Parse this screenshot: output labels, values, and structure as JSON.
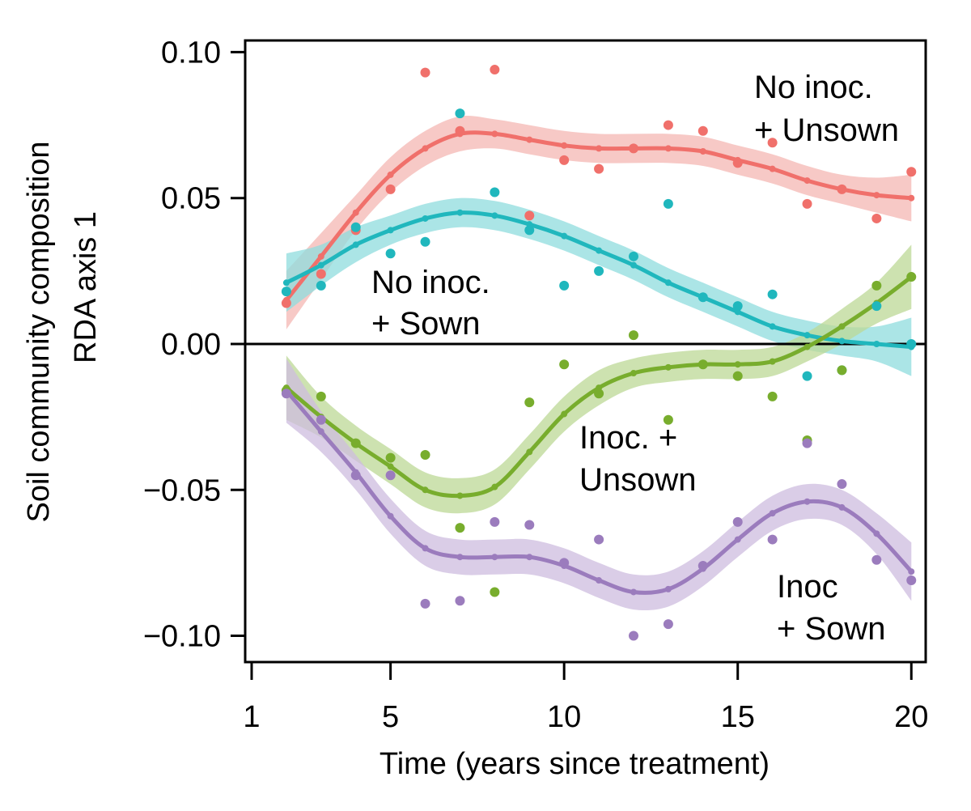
{
  "chart_data": {
    "type": "line",
    "title": "",
    "xlabel": "Time (years since treatment)",
    "ylabel_line1": "Soil community composition",
    "ylabel_line2": "RDA axis 1",
    "xlim": [
      1,
      20.6
    ],
    "ylim": [
      -0.109,
      0.104
    ],
    "x_ticks": [
      1,
      5,
      10,
      15,
      20
    ],
    "x_tick_labels": [
      "1",
      "5",
      "10",
      "15",
      "20"
    ],
    "y_ticks": [
      -0.1,
      -0.05,
      0,
      0.05,
      0.1
    ],
    "y_tick_labels": [
      "−0.10",
      "−0.05",
      "0.00",
      "0.05",
      "0.10"
    ],
    "reference_line_y": 0,
    "x": [
      2,
      3,
      4,
      5,
      6,
      7,
      8,
      9,
      10,
      11,
      12,
      13,
      14,
      15,
      16,
      17,
      18,
      19,
      20
    ],
    "series": [
      {
        "name": "No inoc. + Unsown",
        "label_line1": "No inoc.",
        "label_line2": "+ Unsown",
        "color": "#f0706b",
        "fill": "#f4b7b3",
        "fit": [
          0.015,
          0.03,
          0.045,
          0.058,
          0.067,
          0.072,
          0.072,
          0.07,
          0.068,
          0.067,
          0.067,
          0.067,
          0.066,
          0.063,
          0.06,
          0.056,
          0.053,
          0.051,
          0.05
        ],
        "band_halfwidth": [
          0.01,
          0.008,
          0.006,
          0.006,
          0.006,
          0.006,
          0.005,
          0.005,
          0.005,
          0.005,
          0.005,
          0.005,
          0.005,
          0.005,
          0.005,
          0.005,
          0.005,
          0.006,
          0.008
        ],
        "points": [
          0.014,
          0.024,
          0.039,
          0.053,
          0.093,
          0.073,
          0.094,
          0.044,
          0.063,
          0.06,
          0.067,
          0.075,
          0.073,
          0.062,
          0.069,
          0.048,
          0.053,
          0.043,
          0.059
        ]
      },
      {
        "name": "No inoc. + Sown",
        "label_line1": "No inoc.",
        "label_line2": "+ Sown",
        "color": "#20b7bd",
        "fill": "#8fdcde",
        "fit": [
          0.021,
          0.027,
          0.034,
          0.039,
          0.043,
          0.045,
          0.044,
          0.041,
          0.037,
          0.032,
          0.027,
          0.021,
          0.016,
          0.011,
          0.006,
          0.003,
          0.001,
          0.0,
          -0.001
        ],
        "band_halfwidth": [
          0.01,
          0.007,
          0.006,
          0.005,
          0.005,
          0.005,
          0.005,
          0.005,
          0.005,
          0.005,
          0.005,
          0.005,
          0.005,
          0.005,
          0.005,
          0.005,
          0.005,
          0.006,
          0.01
        ],
        "points": [
          0.018,
          0.02,
          0.04,
          0.031,
          0.035,
          0.079,
          0.052,
          0.039,
          0.02,
          0.025,
          0.03,
          0.048,
          0.016,
          0.013,
          0.017,
          -0.011,
          -0.009,
          0.013,
          0.0
        ]
      },
      {
        "name": "Inoc. + Unsown",
        "label_line1": "Inoc. +",
        "label_line2": "Unsown",
        "color": "#78ad2d",
        "fill": "#bcd896",
        "fit": [
          -0.015,
          -0.025,
          -0.034,
          -0.042,
          -0.05,
          -0.052,
          -0.049,
          -0.037,
          -0.024,
          -0.015,
          -0.01,
          -0.008,
          -0.007,
          -0.007,
          -0.006,
          -0.001,
          0.006,
          0.014,
          0.023
        ],
        "band_halfwidth": [
          0.011,
          0.007,
          0.006,
          0.006,
          0.006,
          0.006,
          0.006,
          0.006,
          0.006,
          0.006,
          0.005,
          0.005,
          0.005,
          0.005,
          0.005,
          0.005,
          0.006,
          0.007,
          0.011
        ],
        "points": [
          -0.016,
          -0.018,
          -0.034,
          -0.039,
          -0.038,
          -0.063,
          -0.085,
          -0.02,
          -0.007,
          -0.017,
          0.003,
          -0.026,
          -0.007,
          -0.011,
          -0.018,
          -0.033,
          -0.009,
          0.02,
          0.023
        ]
      },
      {
        "name": "Inoc + Sown",
        "label_line1": "Inoc",
        "label_line2": "+ Sown",
        "color": "#9b7cbd",
        "fill": "#cdbcdf",
        "fit": [
          -0.016,
          -0.03,
          -0.044,
          -0.059,
          -0.07,
          -0.073,
          -0.073,
          -0.073,
          -0.076,
          -0.081,
          -0.085,
          -0.084,
          -0.077,
          -0.067,
          -0.058,
          -0.054,
          -0.056,
          -0.065,
          -0.078
        ],
        "band_halfwidth": [
          0.011,
          0.007,
          0.006,
          0.006,
          0.006,
          0.006,
          0.006,
          0.006,
          0.006,
          0.006,
          0.006,
          0.006,
          0.006,
          0.006,
          0.006,
          0.006,
          0.006,
          0.007,
          0.01
        ],
        "points": [
          -0.017,
          -0.026,
          -0.045,
          -0.045,
          -0.089,
          -0.088,
          -0.061,
          -0.062,
          -0.075,
          -0.067,
          -0.1,
          -0.096,
          -0.076,
          -0.061,
          -0.067,
          -0.034,
          -0.048,
          -0.074,
          -0.081
        ]
      }
    ]
  }
}
